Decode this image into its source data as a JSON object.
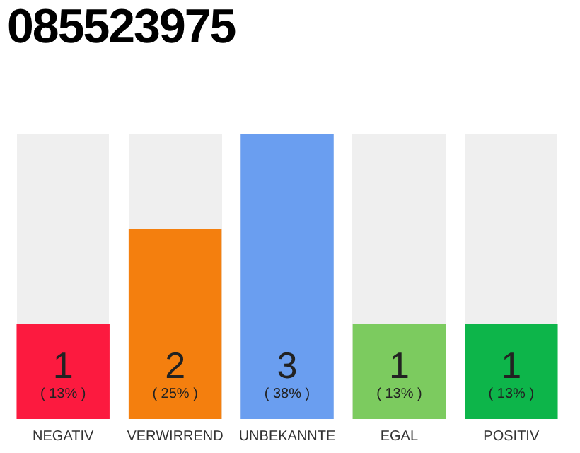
{
  "chart_data": {
    "type": "bar",
    "title": "085523975",
    "categories": [
      "NEGATIV",
      "VERWIRREND",
      "UNBEKANNTE",
      "EGAL",
      "POSITIV"
    ],
    "values": [
      1,
      2,
      3,
      1,
      1
    ],
    "colors": [
      "#fc1a3f",
      "#f47f0e",
      "#6a9ef0",
      "#7ccb5f",
      "#0db54a"
    ],
    "data_labels": true,
    "annotations": [
      "( 13% )",
      "( 25% )",
      "( 38% )",
      "( 13% )",
      "( 13% )"
    ],
    "grid": false,
    "legend": false
  }
}
